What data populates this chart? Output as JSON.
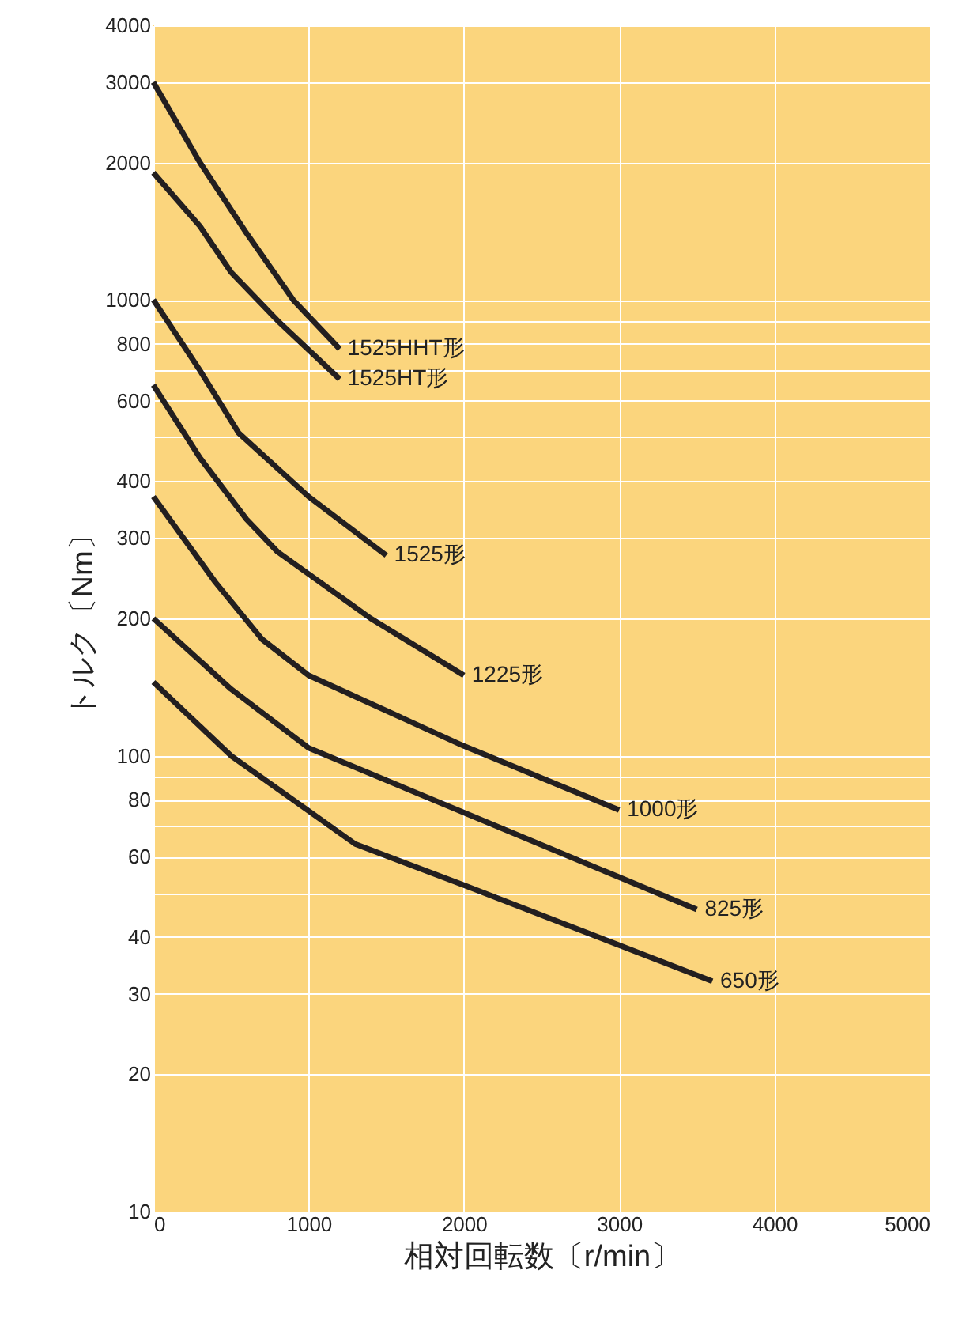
{
  "chart_data": {
    "type": "line",
    "xlabel": "相対回転数〔r/min〕",
    "ylabel": "トルク〔Nm〕",
    "log": "y",
    "grid": true,
    "marker": "none",
    "line_style": "solid",
    "xlim": [
      0,
      5000
    ],
    "xticks": [
      0,
      1000,
      2000,
      3000,
      4000,
      5000
    ],
    "ylim": [
      10,
      4000
    ],
    "yticks": [
      10,
      20,
      30,
      40,
      {
        "value": 50,
        "label": null
      },
      60,
      {
        "value": 70,
        "label": null
      },
      80,
      {
        "value": 90,
        "label": null
      },
      100,
      200,
      300,
      400,
      {
        "value": 500,
        "label": null
      },
      600,
      {
        "value": 700,
        "label": null
      },
      800,
      {
        "value": 900,
        "label": null
      },
      1000,
      2000,
      3000,
      4000
    ],
    "series": [
      {
        "name": "1525HHT形",
        "color": "#231f20",
        "x": [
          0,
          300,
          600,
          900,
          1200
        ],
        "values": [
          3000,
          2000,
          1400,
          1000,
          780
        ]
      },
      {
        "name": "1525HT形",
        "color": "#231f20",
        "x": [
          0,
          300,
          500,
          800,
          1200
        ],
        "values": [
          1900,
          1450,
          1150,
          900,
          670
        ]
      },
      {
        "name": "1525形",
        "color": "#231f20",
        "x": [
          0,
          300,
          550,
          1000,
          1500
        ],
        "values": [
          1000,
          700,
          510,
          370,
          275
        ]
      },
      {
        "name": "1225形",
        "color": "#231f20",
        "x": [
          0,
          300,
          600,
          800,
          1400,
          2000
        ],
        "values": [
          650,
          450,
          330,
          280,
          200,
          150
        ]
      },
      {
        "name": "1000形",
        "color": "#231f20",
        "x": [
          0,
          400,
          700,
          1000,
          2000,
          3000
        ],
        "values": [
          370,
          240,
          180,
          150,
          105,
          76
        ]
      },
      {
        "name": "825形",
        "color": "#231f20",
        "x": [
          0,
          500,
          1000,
          2000,
          3500
        ],
        "values": [
          200,
          140,
          104,
          75,
          46
        ]
      },
      {
        "name": "650形",
        "color": "#231f20",
        "x": [
          0,
          500,
          1300,
          2000,
          3600
        ],
        "values": [
          145,
          100,
          64,
          52,
          32
        ]
      }
    ]
  }
}
